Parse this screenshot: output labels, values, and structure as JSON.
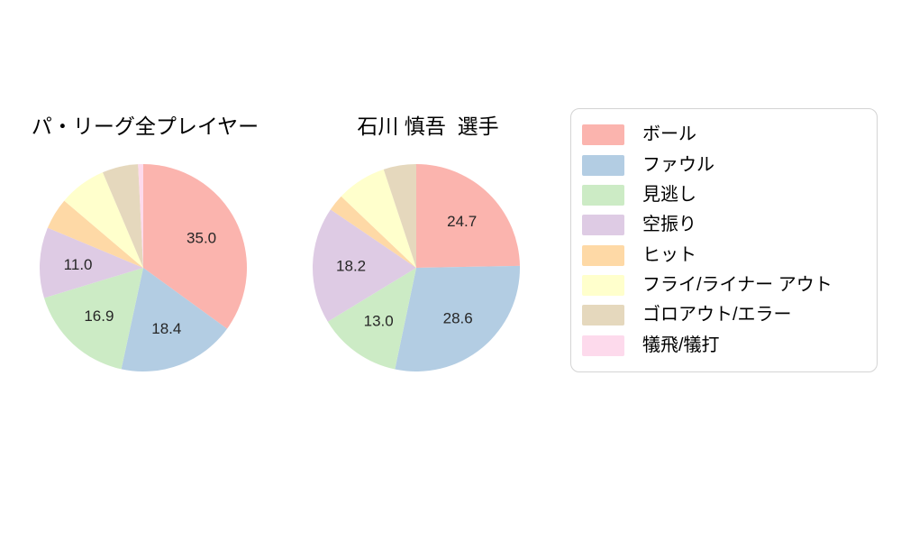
{
  "charts": {
    "left_title": "パ・リーグ全プレイヤー",
    "right_title": "石川 慎吾  選手"
  },
  "legend": {
    "items": [
      {
        "label": "ボール",
        "color": "#FBB4AE"
      },
      {
        "label": "ファウル",
        "color": "#B3CDE3"
      },
      {
        "label": "見逃し",
        "color": "#CCEBC5"
      },
      {
        "label": "空振り",
        "color": "#DECBE4"
      },
      {
        "label": "ヒット",
        "color": "#FED9A6"
      },
      {
        "label": "フライ/ライナー アウト",
        "color": "#FFFFCC"
      },
      {
        "label": "ゴロアウト/エラー",
        "color": "#E5D8BD"
      },
      {
        "label": "犠飛/犠打",
        "color": "#FDDAEC"
      }
    ]
  },
  "chart_data": [
    {
      "type": "pie",
      "title": "パ・リーグ全プレイヤー",
      "categories": [
        "ボール",
        "ファウル",
        "見逃し",
        "空振り",
        "ヒット",
        "フライ/ライナー アウト",
        "ゴロアウト/エラー",
        "犠飛/犠打"
      ],
      "values": [
        35.0,
        18.4,
        16.9,
        11.0,
        4.9,
        7.4,
        5.6,
        0.8
      ],
      "data_labels": [
        "35.0",
        "18.4",
        "16.9",
        "11.0",
        null,
        null,
        null,
        null
      ],
      "colors": [
        "#FBB4AE",
        "#B3CDE3",
        "#CCEBC5",
        "#DECBE4",
        "#FED9A6",
        "#FFFFCC",
        "#E5D8BD",
        "#FDDAEC"
      ],
      "unit": "percent",
      "start_angle_deg": 90,
      "direction": "clockwise",
      "legend_position": "right"
    },
    {
      "type": "pie",
      "title": "石川 慎吾  選手",
      "categories": [
        "ボール",
        "ファウル",
        "見逃し",
        "空振り",
        "ヒット",
        "フライ/ライナー アウト",
        "ゴロアウト/エラー",
        "犠飛/犠打"
      ],
      "values": [
        24.7,
        28.6,
        13.0,
        18.2,
        2.6,
        7.8,
        5.1,
        0.0
      ],
      "data_labels": [
        "24.7",
        "28.6",
        "13.0",
        "18.2",
        null,
        null,
        null,
        null
      ],
      "colors": [
        "#FBB4AE",
        "#B3CDE3",
        "#CCEBC5",
        "#DECBE4",
        "#FED9A6",
        "#FFFFCC",
        "#E5D8BD",
        "#FDDAEC"
      ],
      "unit": "percent",
      "start_angle_deg": 90,
      "direction": "clockwise",
      "legend_position": "right"
    }
  ]
}
